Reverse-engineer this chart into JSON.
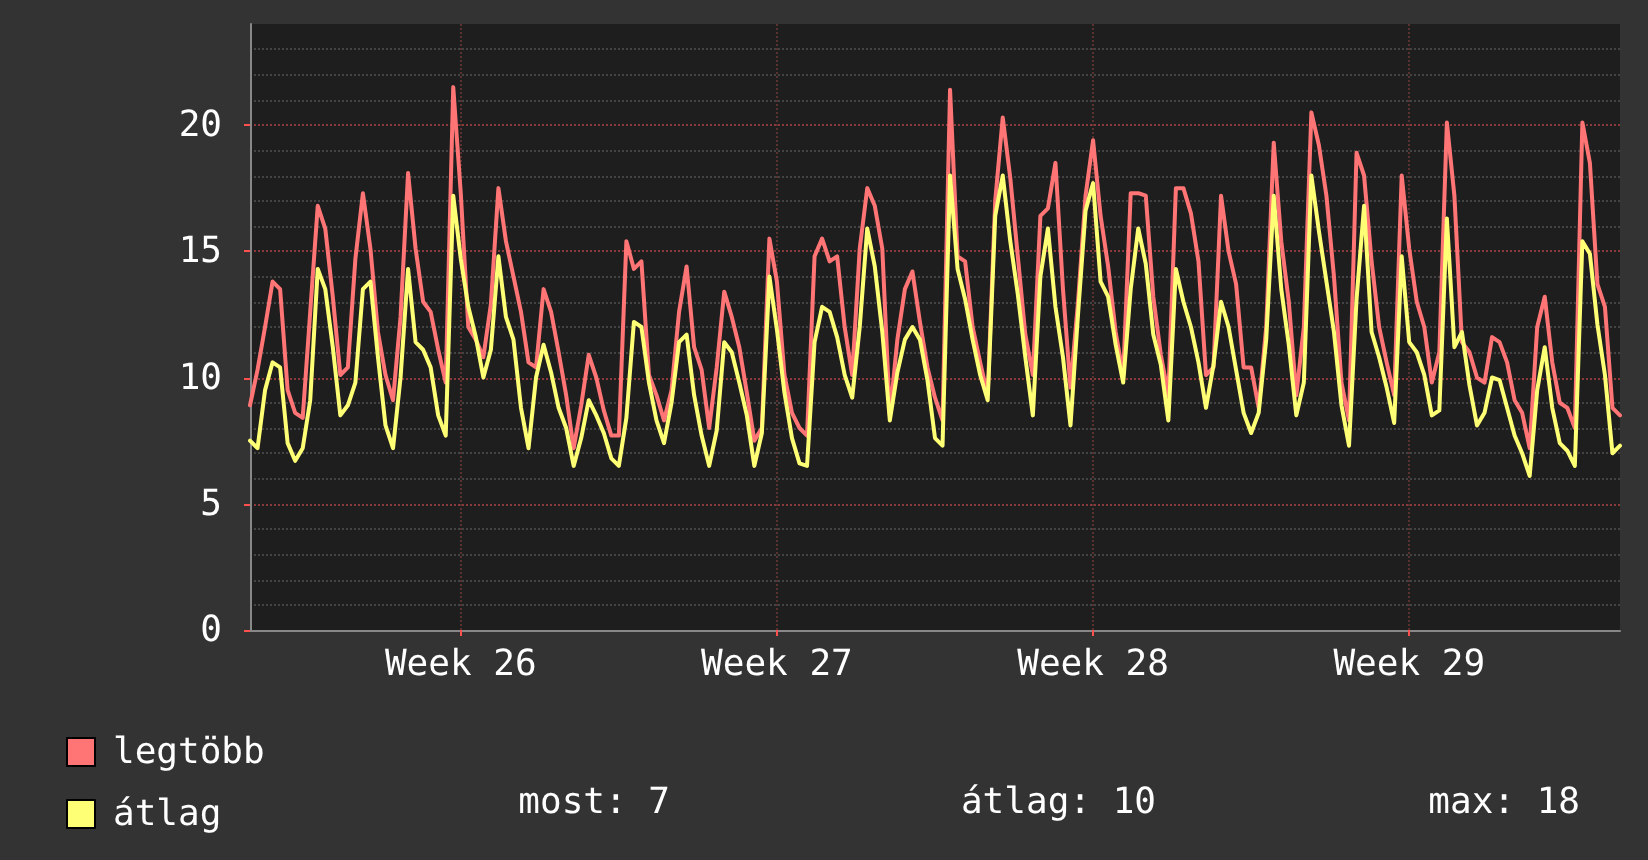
{
  "chart_data": {
    "type": "line",
    "categories": [
      null,
      null,
      null,
      null,
      null,
      null,
      null,
      null,
      null,
      null,
      null,
      null,
      null,
      null,
      null,
      null,
      null,
      null,
      null,
      null,
      null,
      null,
      null,
      null,
      null,
      null,
      null,
      null,
      "Week 26",
      null,
      null,
      null,
      null,
      null,
      null,
      null,
      null,
      null,
      null,
      null,
      null,
      null,
      null,
      null,
      null,
      null,
      null,
      null,
      null,
      null,
      null,
      null,
      null,
      null,
      null,
      null,
      null,
      null,
      null,
      null,
      null,
      null,
      null,
      null,
      null,
      null,
      null,
      null,
      null,
      null,
      "Week 27",
      null,
      null,
      null,
      null,
      null,
      null,
      null,
      null,
      null,
      null,
      null,
      null,
      null,
      null,
      null,
      null,
      null,
      null,
      null,
      null,
      null,
      null,
      null,
      null,
      null,
      null,
      null,
      null,
      null,
      null,
      null,
      null,
      null,
      null,
      null,
      null,
      null,
      null,
      null,
      null,
      null,
      "Week 28",
      null,
      null,
      null,
      null,
      null,
      null,
      null,
      null,
      null,
      null,
      null,
      null,
      null,
      null,
      null,
      null,
      null,
      null,
      null,
      null,
      null,
      null,
      null,
      null,
      null,
      null,
      null,
      null,
      null,
      null,
      null,
      null,
      null,
      null,
      null,
      null,
      null,
      null,
      null,
      null,
      null,
      "Week 29",
      null,
      null,
      null,
      null,
      null,
      null,
      null,
      null,
      null,
      null,
      null,
      null,
      null,
      null,
      null,
      null,
      null,
      null,
      null,
      null,
      null,
      null,
      null,
      null,
      null,
      null,
      null,
      null
    ],
    "ylim": [
      0,
      24
    ],
    "yticks": [
      0,
      5,
      10,
      15,
      20
    ],
    "grid": true,
    "legend": "bottom left",
    "marker": "none",
    "line_style": "solid",
    "annotations": [
      "most: 7",
      "átlag: 10",
      "max: 18"
    ],
    "series": [
      {
        "name": "legtöbb",
        "color": "#ff7575",
        "values": [
          8.9,
          10.3,
          12.0,
          13.8,
          13.5,
          9.5,
          8.6,
          8.4,
          12.6,
          16.8,
          15.9,
          13.2,
          10.1,
          10.4,
          14.7,
          17.3,
          15.1,
          11.8,
          10.1,
          9.1,
          12.4,
          18.1,
          15.1,
          13.0,
          12.6,
          11.1,
          9.8,
          21.5,
          17.3,
          12.0,
          11.5,
          10.8,
          12.9,
          17.5,
          15.4,
          14.0,
          12.6,
          10.6,
          10.4,
          13.5,
          12.6,
          11.0,
          9.3,
          7.2,
          8.9,
          10.9,
          10.0,
          8.7,
          7.7,
          7.7,
          15.4,
          14.3,
          14.6,
          10.1,
          9.3,
          8.3,
          9.5,
          12.6,
          14.4,
          11.2,
          10.3,
          8.0,
          10.4,
          13.4,
          12.4,
          11.2,
          9.4,
          7.5,
          8.0,
          15.5,
          13.8,
          10.1,
          8.6,
          8.0,
          7.7,
          14.8,
          15.5,
          14.6,
          14.8,
          12.0,
          10.1,
          15.1,
          17.5,
          16.8,
          15.1,
          8.5,
          11.5,
          13.5,
          14.2,
          12.2,
          10.4,
          9.2,
          8.3,
          21.4,
          14.8,
          14.6,
          12.0,
          10.6,
          9.3,
          17.0,
          20.3,
          17.9,
          14.8,
          11.7,
          10.1,
          16.4,
          16.7,
          18.5,
          13.5,
          9.6,
          13.0,
          17.2,
          19.4,
          16.4,
          14.4,
          11.8,
          10.1,
          17.3,
          17.3,
          17.2,
          13.2,
          10.9,
          9.3,
          17.5,
          17.5,
          16.5,
          14.6,
          10.1,
          10.4,
          17.2,
          15.0,
          13.7,
          10.4,
          10.4,
          8.8,
          12.0,
          19.3,
          15.4,
          13.0,
          9.3,
          12.0,
          20.5,
          19.2,
          17.2,
          14.0,
          9.8,
          8.3,
          18.9,
          18.0,
          14.6,
          12.0,
          10.6,
          9.3,
          18.0,
          15.1,
          13.0,
          12.0,
          9.8,
          11.0,
          20.1,
          17.2,
          11.4,
          11.0,
          10.0,
          9.8,
          11.6,
          11.4,
          10.6,
          9.1,
          8.6,
          7.2,
          12.0,
          13.2,
          10.6,
          9.0,
          8.8,
          8.0,
          20.1,
          18.5,
          13.7,
          12.8,
          8.8,
          8.5
        ]
      },
      {
        "name": "átlag",
        "color": "#ffff75",
        "values": [
          7.5,
          7.2,
          9.5,
          10.6,
          10.4,
          7.4,
          6.7,
          7.2,
          9.1,
          14.3,
          13.5,
          11.2,
          8.5,
          8.9,
          9.8,
          13.5,
          13.8,
          10.8,
          8.1,
          7.2,
          10.0,
          14.3,
          11.4,
          11.1,
          10.4,
          8.5,
          7.7,
          17.2,
          14.7,
          12.8,
          11.6,
          10.0,
          11.1,
          14.8,
          12.4,
          11.5,
          8.8,
          7.2,
          10.0,
          11.3,
          10.2,
          8.8,
          8.0,
          6.5,
          7.6,
          9.1,
          8.5,
          7.8,
          6.8,
          6.5,
          8.4,
          12.2,
          12.0,
          9.8,
          8.3,
          7.4,
          9.0,
          11.4,
          11.7,
          9.3,
          7.7,
          6.5,
          7.9,
          11.4,
          11.0,
          9.8,
          8.5,
          6.5,
          7.8,
          14.0,
          11.9,
          9.4,
          7.6,
          6.6,
          6.5,
          11.4,
          12.8,
          12.6,
          11.6,
          10.1,
          9.2,
          12.0,
          15.9,
          14.4,
          11.8,
          8.3,
          10.2,
          11.5,
          12.0,
          11.5,
          9.9,
          7.6,
          7.3,
          18.0,
          14.3,
          13.1,
          11.5,
          10.1,
          9.1,
          16.4,
          18.0,
          15.4,
          13.3,
          10.8,
          8.5,
          14.0,
          15.9,
          12.8,
          10.8,
          8.1,
          12.5,
          16.6,
          17.7,
          13.8,
          13.2,
          11.3,
          9.8,
          13.5,
          15.9,
          14.5,
          11.7,
          10.5,
          8.3,
          14.3,
          13.0,
          12.0,
          10.6,
          8.8,
          10.5,
          13.0,
          12.0,
          10.3,
          8.6,
          7.8,
          8.6,
          11.5,
          17.2,
          13.5,
          11.3,
          8.5,
          9.8,
          18.0,
          15.8,
          13.8,
          11.8,
          8.9,
          7.3,
          13.1,
          16.8,
          11.8,
          10.8,
          9.6,
          8.2,
          14.8,
          11.4,
          11.0,
          10.1,
          8.5,
          8.7,
          16.3,
          11.2,
          11.8,
          9.7,
          8.1,
          8.6,
          10.0,
          9.9,
          8.8,
          7.7,
          7.0,
          6.1,
          9.5,
          11.2,
          8.8,
          7.4,
          7.1,
          6.5,
          15.4,
          14.9,
          12.1,
          10.1,
          7.0,
          7.3
        ]
      }
    ]
  }
}
